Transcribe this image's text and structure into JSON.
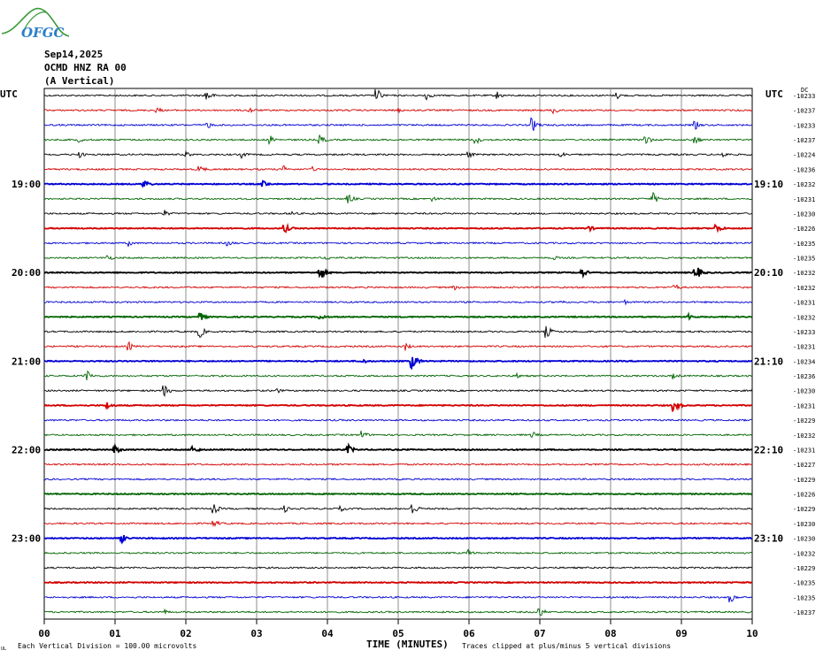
{
  "logo": {
    "text": "OFGC",
    "colors": {
      "text": "#2b7fc9",
      "swoosh": "#3a9a3a"
    }
  },
  "header": {
    "date": "Sep14,2025",
    "station": "OCMD HNZ RA 00",
    "component": "(A Vertical)"
  },
  "utc_label_left": "UTC",
  "utc_label_right": "UTC",
  "top_right_unit": "DC",
  "footer": {
    "xlabel": "TIME (MINUTES)",
    "scale_note": "Each Vertical Division =  100.00 microvolts",
    "clip_note": "Traces clipped at plus/minus 5 vertical divisions",
    "corner_mark": "UL"
  },
  "chart_data": {
    "type": "line",
    "title": "OCMD HNZ RA 00 (A Vertical) Sep14,2025",
    "xlabel": "TIME (MINUTES)",
    "ylabel": "",
    "x_ticks": [
      "00",
      "01",
      "02",
      "03",
      "04",
      "05",
      "06",
      "07",
      "08",
      "09",
      "10"
    ],
    "xlim": [
      0,
      10
    ],
    "grid": true,
    "trace_colors": [
      "#000000",
      "#d40000",
      "#0000d4",
      "#006400"
    ],
    "left_time_labels": [
      {
        "row": 6,
        "label": "19:00"
      },
      {
        "row": 12,
        "label": "20:00"
      },
      {
        "row": 18,
        "label": "21:00"
      },
      {
        "row": 24,
        "label": "22:00"
      },
      {
        "row": 30,
        "label": "23:00"
      }
    ],
    "right_time_labels": [
      {
        "row": 6,
        "label": "19:10"
      },
      {
        "row": 12,
        "label": "20:10"
      },
      {
        "row": 18,
        "label": "21:10"
      },
      {
        "row": 24,
        "label": "22:10"
      },
      {
        "row": 30,
        "label": "23:10"
      }
    ],
    "dc_offsets": [
      "-10233",
      "-10237",
      "-10233",
      "-10237",
      "-10224",
      "-10236",
      "-10232",
      "-10231",
      "-10230",
      "-10226",
      "-10235",
      "-10235",
      "-10232",
      "-10232",
      "-10231",
      "-10232",
      "-10233",
      "-10231",
      "-10234",
      "-10236",
      "-10230",
      "-10231",
      "-10229",
      "-10232",
      "-10231",
      "-10227",
      "-10229",
      "-10226",
      "-10229",
      "-10230",
      "-10230",
      "-10232",
      "-10229",
      "-10235",
      "-10235",
      "-10237"
    ],
    "thick_rows": [
      6,
      9,
      12,
      15,
      18,
      21,
      24,
      27,
      30,
      33
    ],
    "events": [
      [
        [
          2.3,
          7
        ],
        [
          4.7,
          8
        ],
        [
          5.4,
          5
        ],
        [
          6.4,
          5
        ],
        [
          8.1,
          4
        ]
      ],
      [
        [
          1.6,
          4
        ],
        [
          2.9,
          4
        ],
        [
          5.0,
          3
        ],
        [
          7.2,
          5
        ]
      ],
      [
        [
          2.3,
          5
        ],
        [
          6.9,
          8
        ],
        [
          9.2,
          5
        ]
      ],
      [
        [
          0.5,
          3
        ],
        [
          3.2,
          5
        ],
        [
          3.9,
          6
        ],
        [
          6.1,
          5
        ],
        [
          8.5,
          6
        ],
        [
          9.2,
          5
        ]
      ],
      [
        [
          0.5,
          4
        ],
        [
          2.0,
          4
        ],
        [
          2.8,
          4
        ],
        [
          6.0,
          4
        ],
        [
          7.3,
          4
        ],
        [
          9.6,
          4
        ]
      ],
      [
        [
          2.2,
          5
        ],
        [
          3.4,
          4
        ],
        [
          3.8,
          3
        ]
      ],
      [
        [
          1.4,
          6
        ],
        [
          3.1,
          4
        ]
      ],
      [
        [
          4.3,
          6
        ],
        [
          5.5,
          3
        ],
        [
          8.6,
          7
        ]
      ],
      [
        [
          1.7,
          4
        ],
        [
          3.5,
          3
        ]
      ],
      [
        [
          3.4,
          5
        ],
        [
          7.7,
          3
        ],
        [
          9.5,
          5
        ]
      ],
      [
        [
          1.2,
          4
        ],
        [
          2.6,
          4
        ]
      ],
      [
        [
          0.9,
          4
        ],
        [
          4.0,
          3
        ],
        [
          7.2,
          3
        ]
      ],
      [
        [
          3.9,
          8
        ],
        [
          7.6,
          5
        ],
        [
          9.2,
          9
        ]
      ],
      [
        [
          5.8,
          3
        ],
        [
          8.9,
          5
        ]
      ],
      [
        [
          7.3,
          3
        ],
        [
          8.2,
          3
        ]
      ],
      [
        [
          2.2,
          5
        ],
        [
          3.9,
          4
        ],
        [
          9.1,
          4
        ]
      ],
      [
        [
          2.2,
          7
        ],
        [
          7.1,
          7
        ]
      ],
      [
        [
          1.2,
          5
        ],
        [
          5.1,
          5
        ]
      ],
      [
        [
          4.5,
          3
        ],
        [
          5.2,
          8
        ]
      ],
      [
        [
          0.6,
          7
        ],
        [
          6.7,
          3
        ],
        [
          8.9,
          4
        ]
      ],
      [
        [
          1.7,
          7
        ],
        [
          3.3,
          3
        ]
      ],
      [
        [
          0.9,
          4
        ],
        [
          8.9,
          7
        ]
      ],
      [],
      [
        [
          4.5,
          5
        ],
        [
          6.9,
          4
        ]
      ],
      [
        [
          1.0,
          5
        ],
        [
          2.1,
          5
        ],
        [
          4.3,
          5
        ]
      ],
      [],
      [],
      [],
      [
        [
          2.4,
          6
        ],
        [
          3.4,
          4
        ],
        [
          4.2,
          3
        ],
        [
          5.2,
          8
        ]
      ],
      [
        [
          2.4,
          5
        ]
      ],
      [
        [
          1.1,
          5
        ]
      ],
      [
        [
          6.0,
          4
        ]
      ],
      [],
      [],
      [
        [
          9.7,
          6
        ]
      ],
      [
        [
          1.7,
          3
        ],
        [
          7.0,
          6
        ]
      ]
    ]
  }
}
